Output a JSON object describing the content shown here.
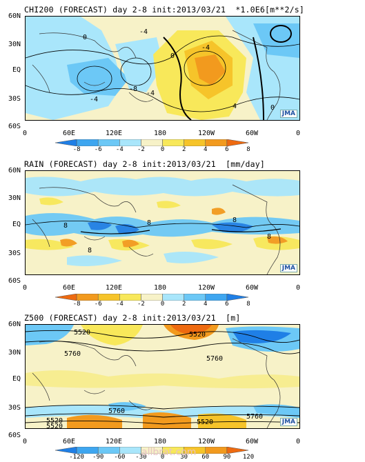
{
  "watermark": "allbrat.com",
  "chart_data": [
    {
      "type": "heatmap",
      "title": "CHI200 (FORECAST) day 2-8 init:2013/03/21  *1.0E6[m**2/s]",
      "yticks": [
        "60N",
        "30N",
        "EQ",
        "30S",
        "60S"
      ],
      "xticks": [
        "0",
        "60E",
        "120E",
        "180",
        "120W",
        "60W",
        "0"
      ],
      "colorbar": {
        "labels": [
          "-8",
          "-6",
          "-4",
          "-2",
          "0",
          "2",
          "4",
          "6",
          "8"
        ],
        "colors": [
          "#1f7fe6",
          "#3ea6f0",
          "#6cc8f6",
          "#a9e6fb",
          "#f7f2c8",
          "#f8e85a",
          "#f6c42a",
          "#f29a1e",
          "#ee6a10"
        ]
      },
      "contour_labels": [
        "-4",
        "0",
        "-4",
        "-8",
        "0",
        "-4",
        "4",
        "0",
        "-4"
      ],
      "logo": "JMA"
    },
    {
      "type": "heatmap",
      "title": "RAIN (FORECAST) day 2-8 init:2013/03/21  [mm/day]",
      "yticks": [
        "60N",
        "30N",
        "EQ",
        "30S",
        "60S"
      ],
      "xticks": [
        "0",
        "60E",
        "120E",
        "180",
        "120W",
        "60W",
        "0"
      ],
      "colorbar": {
        "labels": [
          "-8",
          "-6",
          "-4",
          "-2",
          "0",
          "2",
          "4",
          "6",
          "8"
        ],
        "colors": [
          "#ee6a10",
          "#f29a1e",
          "#f6c42a",
          "#f8e85a",
          "#f7f2c8",
          "#a9e6fb",
          "#6cc8f6",
          "#3ea6f0",
          "#1f7fe6"
        ]
      },
      "contour_labels": [
        "8",
        "8",
        "8",
        "8",
        "8"
      ],
      "logo": "JMA"
    },
    {
      "type": "heatmap",
      "title": "Z500 (FORECAST) day 2-8 init:2013/03/21  [m]",
      "yticks": [
        "60N",
        "30N",
        "EQ",
        "30S",
        "60S"
      ],
      "xticks": [
        "0",
        "60E",
        "120E",
        "180",
        "120W",
        "60W",
        "0"
      ],
      "colorbar": {
        "labels": [
          "-120",
          "-90",
          "-60",
          "-30",
          "0",
          "30",
          "60",
          "90",
          "120"
        ],
        "colors": [
          "#1f7fe6",
          "#3ea6f0",
          "#6cc8f6",
          "#a9e6fb",
          "#f7f2c8",
          "#f8e85a",
          "#f6c42a",
          "#f29a1e",
          "#ee6a10"
        ]
      },
      "contour_labels": [
        "5520",
        "5520",
        "5760",
        "5760",
        "5760",
        "5520",
        "5520",
        "5520",
        "5760"
      ],
      "logo": "JMA"
    }
  ]
}
